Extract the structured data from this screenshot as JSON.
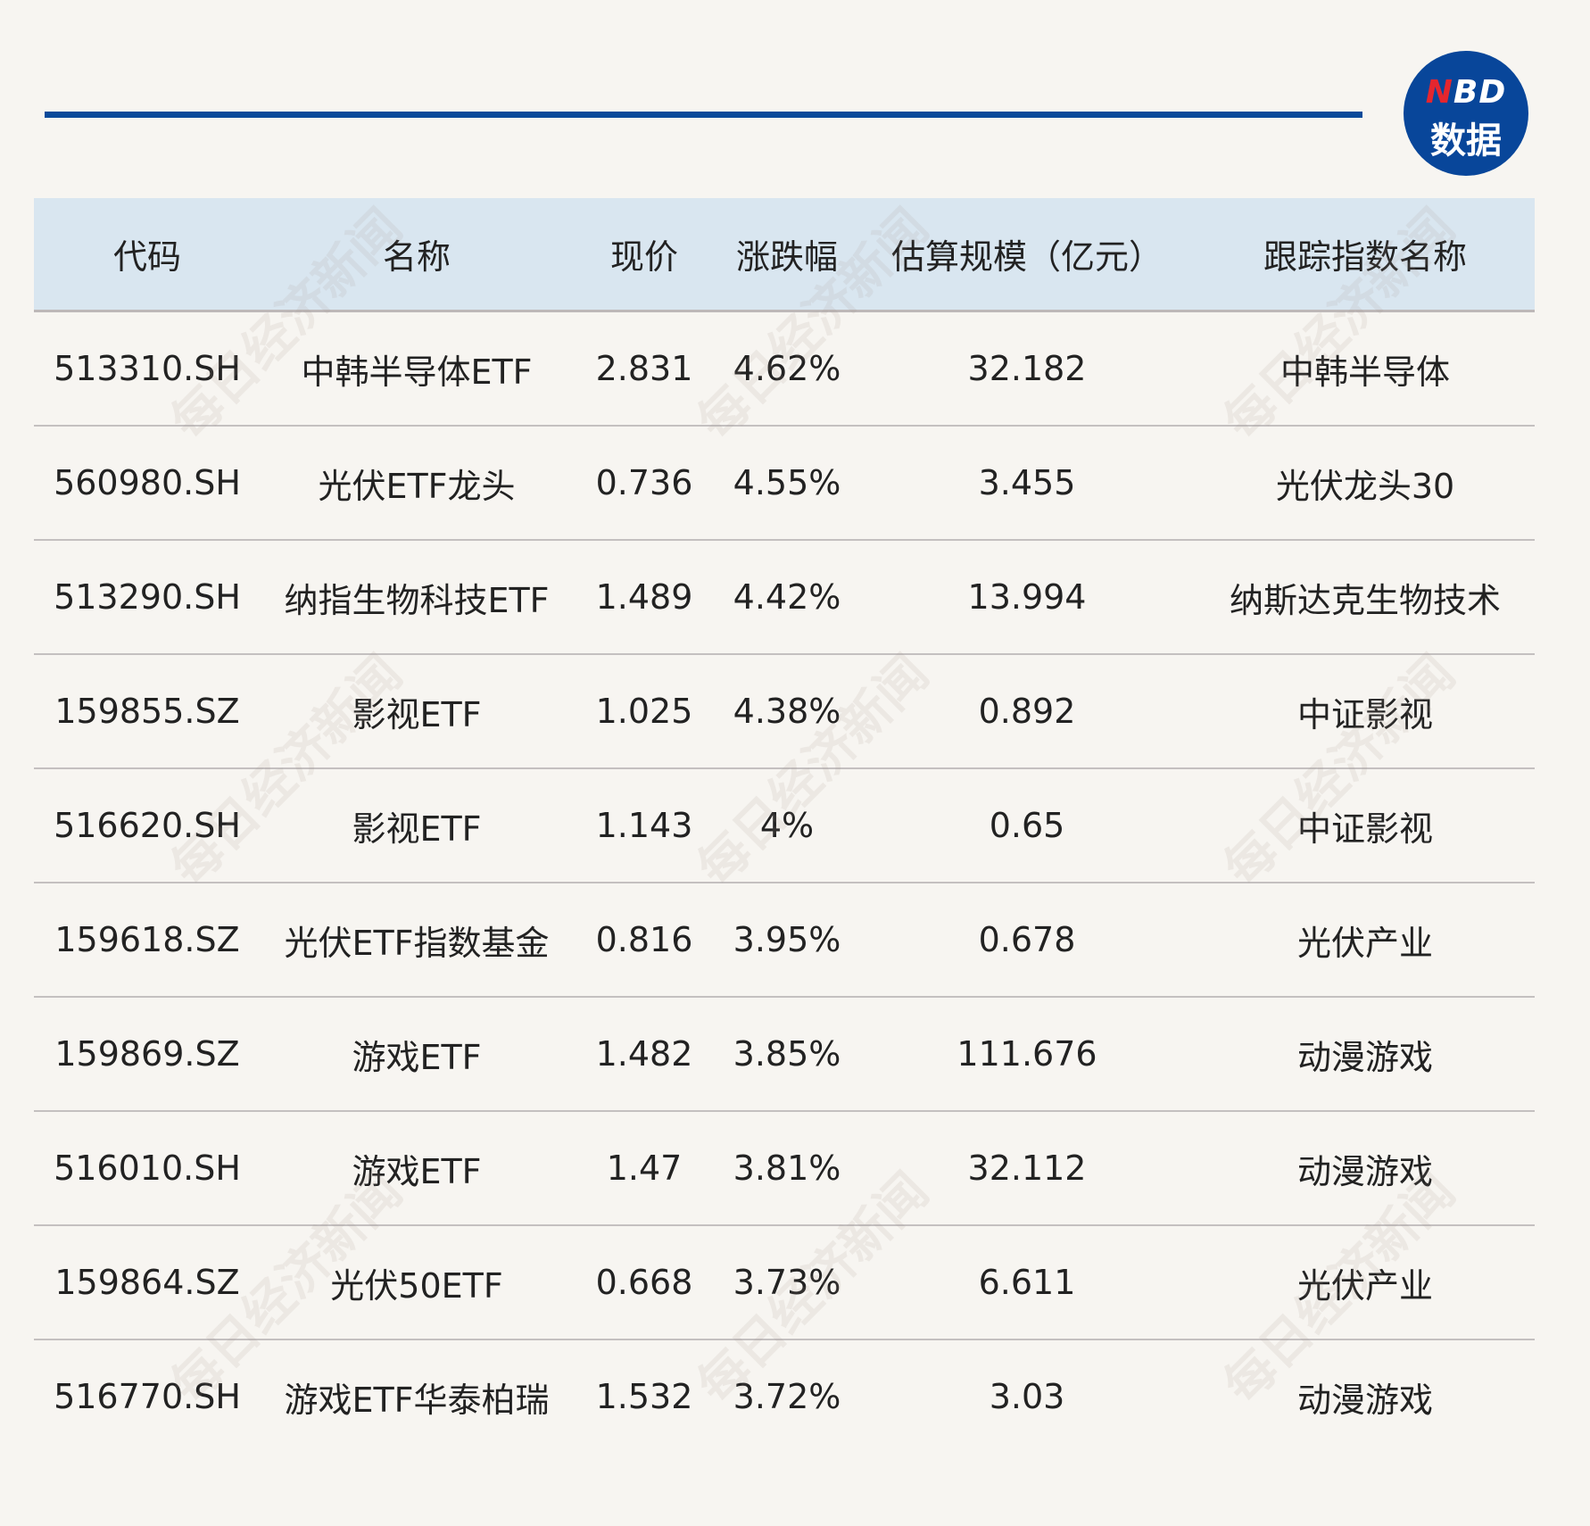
{
  "logo": {
    "brand_n": "N",
    "brand_rest": "BD",
    "sub": "数据"
  },
  "watermark": "每日经济新闻",
  "colors": {
    "accent": "#0a4a9a",
    "header_bg": "#d9e6f0",
    "logo_red": "#e5262e"
  },
  "table": {
    "headers": [
      "代码",
      "名称",
      "现价",
      "涨跌幅",
      "估算规模（亿元）",
      "跟踪指数名称"
    ],
    "rows": [
      [
        "513310.SH",
        "中韩半导体ETF",
        "2.831",
        "4.62%",
        "32.182",
        "中韩半导体"
      ],
      [
        "560980.SH",
        "光伏ETF龙头",
        "0.736",
        "4.55%",
        "3.455",
        "光伏龙头30"
      ],
      [
        "513290.SH",
        "纳指生物科技ETF",
        "1.489",
        "4.42%",
        "13.994",
        "纳斯达克生物技术"
      ],
      [
        "159855.SZ",
        "影视ETF",
        "1.025",
        "4.38%",
        "0.892",
        "中证影视"
      ],
      [
        "516620.SH",
        "影视ETF",
        "1.143",
        "4%",
        "0.65",
        "中证影视"
      ],
      [
        "159618.SZ",
        "光伏ETF指数基金",
        "0.816",
        "3.95%",
        "0.678",
        "光伏产业"
      ],
      [
        "159869.SZ",
        "游戏ETF",
        "1.482",
        "3.85%",
        "111.676",
        "动漫游戏"
      ],
      [
        "516010.SH",
        "游戏ETF",
        "1.47",
        "3.81%",
        "32.112",
        "动漫游戏"
      ],
      [
        "159864.SZ",
        "光伏50ETF",
        "0.668",
        "3.73%",
        "6.611",
        "光伏产业"
      ],
      [
        "516770.SH",
        "游戏ETF华泰柏瑞",
        "1.532",
        "3.72%",
        "3.03",
        "动漫游戏"
      ]
    ]
  }
}
